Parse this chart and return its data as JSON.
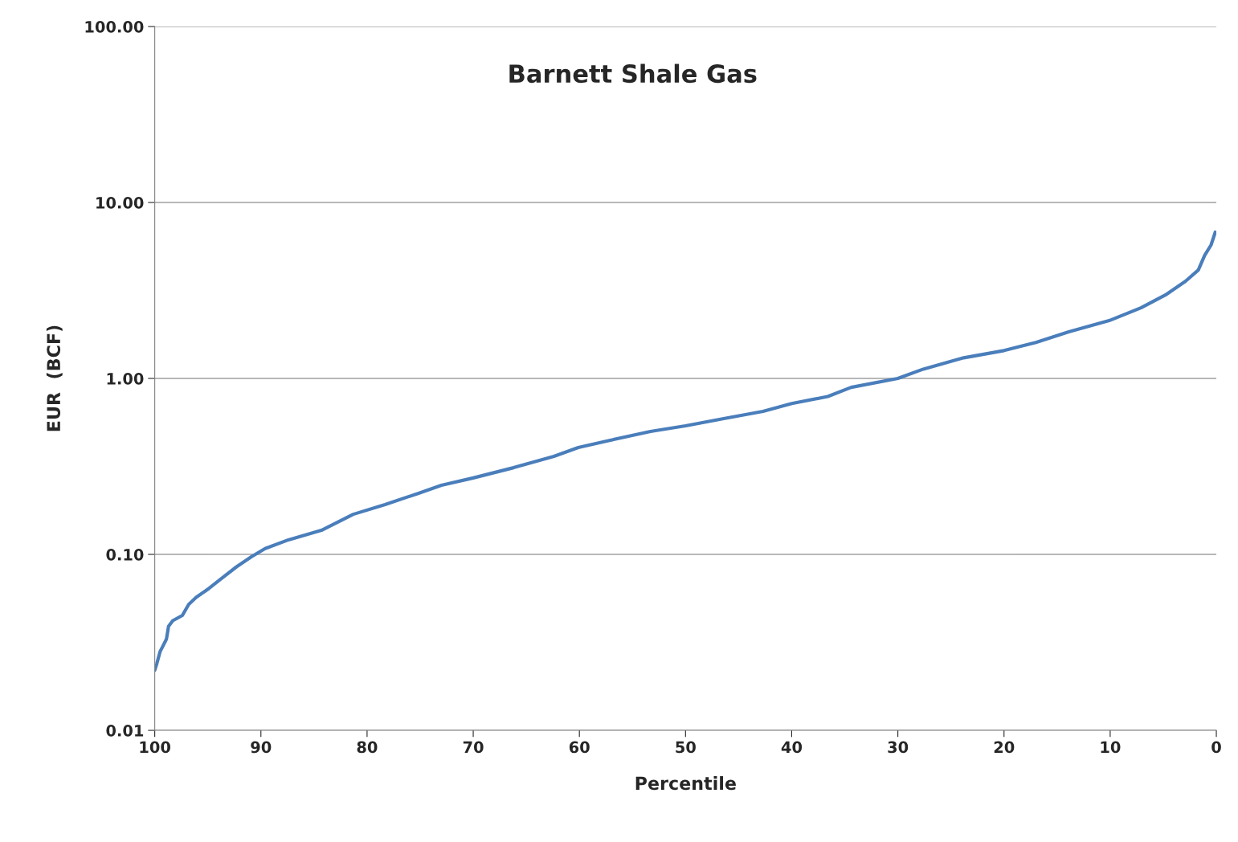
{
  "chart_data": {
    "type": "line",
    "title": "Barnett Shale Gas",
    "xlabel": "Percentile",
    "ylabel": "EUR  (BCF)",
    "x": [
      100,
      99.8,
      99.5,
      98.9,
      98.7,
      98.3,
      97.4,
      96.8,
      96.1,
      94.9,
      93.7,
      92.3,
      90.9,
      89.6,
      87.4,
      84.3,
      81.3,
      78.3,
      75.2,
      73,
      70,
      66.2,
      62.4,
      60.1,
      57.1,
      53.3,
      50,
      46.5,
      42.7,
      40,
      36.6,
      34.4,
      30,
      27.6,
      23.8,
      20,
      17,
      13.9,
      10.1,
      7.1,
      4.8,
      2.9,
      1.7,
      1.1,
      0.5,
      0.1
    ],
    "series": [
      {
        "color": "#4a7ebb",
        "values": [
          0.022,
          0.024,
          0.028,
          0.033,
          0.039,
          0.042,
          0.045,
          0.052,
          0.057,
          0.064,
          0.073,
          0.085,
          0.097,
          0.108,
          0.121,
          0.137,
          0.169,
          0.192,
          0.222,
          0.247,
          0.272,
          0.311,
          0.361,
          0.405,
          0.445,
          0.5,
          0.538,
          0.59,
          0.65,
          0.72,
          0.79,
          0.89,
          1.0,
          1.13,
          1.31,
          1.44,
          1.6,
          1.84,
          2.13,
          2.52,
          2.98,
          3.57,
          4.13,
          5.0,
          5.73,
          6.78
        ]
      }
    ],
    "xlim": [
      100,
      0
    ],
    "xticks": [
      100,
      90,
      80,
      70,
      60,
      50,
      40,
      30,
      20,
      10,
      0
    ],
    "log": "y",
    "ylim": [
      0.01,
      100
    ],
    "yticks": [
      {
        "value": 0.01,
        "label": "0.01"
      },
      {
        "value": 0.1,
        "label": "0.10"
      },
      {
        "value": 1,
        "label": "1.00"
      },
      {
        "value": 10,
        "label": "10.00"
      },
      {
        "value": 100,
        "label": "100.00"
      }
    ],
    "grid": "y",
    "marker": "none",
    "line_style": "solid",
    "legend": false
  }
}
